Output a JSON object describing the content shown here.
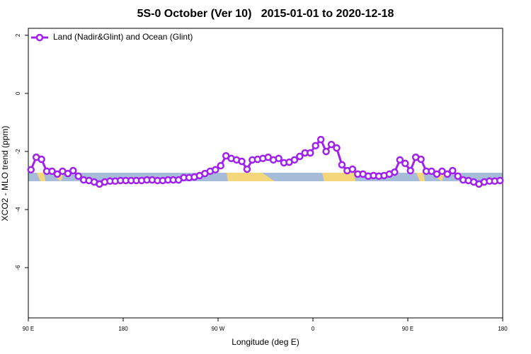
{
  "chart_data": {
    "type": "line",
    "title": "5S-0 October (Ver 10)   2015-01-01 to 2020-12-18",
    "x_label": "Longitude (deg E)",
    "y_label": "XCO2 - MLO trend (ppm)",
    "xlim": [
      90,
      540
    ],
    "xticks": [
      {
        "value": 90,
        "label": "90 E"
      },
      {
        "value": 180,
        "label": "180"
      },
      {
        "value": 270,
        "label": "90 W"
      },
      {
        "value": 360,
        "label": "0"
      },
      {
        "value": 450,
        "label": "90 E"
      },
      {
        "value": 540,
        "label": "180"
      }
    ],
    "ylim": [
      -7.73,
      2.24
    ],
    "yticks": [
      2,
      0,
      -2,
      -4,
      -6
    ],
    "legend": "upper left",
    "x": [
      92.5,
      97.5,
      102.5,
      107.5,
      112.5,
      117.5,
      122.5,
      127.5,
      132.5,
      137.5,
      142.5,
      147.5,
      152.5,
      157.5,
      162.5,
      167.5,
      172.5,
      177.5,
      182.5,
      187.5,
      192.5,
      197.5,
      202.5,
      207.5,
      212.5,
      217.5,
      222.5,
      227.5,
      232.5,
      237.5,
      242.5,
      247.5,
      252.5,
      257.5,
      262.5,
      267.5,
      272.5,
      277.5,
      282.5,
      287.5,
      292.5,
      297.5,
      302.5,
      307.5,
      312.5,
      317.5,
      322.5,
      327.5,
      332.5,
      337.5,
      342.5,
      347.5,
      352.5,
      357.5,
      362.5,
      367.5,
      372.5,
      377.5,
      382.5,
      387.5,
      392.5,
      397.5,
      402.5,
      407.5,
      412.5,
      417.5,
      422.5,
      427.5,
      432.5,
      437.5,
      442.5,
      447.5,
      452.5,
      457.5,
      462.5,
      467.5,
      472.5,
      477.5,
      482.5,
      487.5,
      492.5,
      497.5,
      502.5,
      507.5,
      512.5,
      517.5,
      522.5,
      527.5,
      532.5,
      537.5
    ],
    "series": [
      {
        "name": "Land (Nadir&Glint) and Ocean (Glint)",
        "color": "#a020f0",
        "values": [
          -2.63,
          -2.2,
          -2.27,
          -2.68,
          -2.68,
          -2.78,
          -2.68,
          -2.76,
          -2.66,
          -2.85,
          -2.98,
          -3.0,
          -3.05,
          -3.12,
          -3.05,
          -3.02,
          -3.02,
          -3.0,
          -3.0,
          -3.0,
          -3.0,
          -3.0,
          -2.98,
          -2.98,
          -3.0,
          -3.0,
          -2.98,
          -2.98,
          -2.98,
          -2.9,
          -2.9,
          -2.88,
          -2.83,
          -2.76,
          -2.68,
          -2.63,
          -2.49,
          -2.15,
          -2.24,
          -2.29,
          -2.34,
          -2.61,
          -2.29,
          -2.27,
          -2.24,
          -2.2,
          -2.29,
          -2.24,
          -2.39,
          -2.37,
          -2.29,
          -2.17,
          -2.05,
          -2.05,
          -1.8,
          -1.59,
          -2.0,
          -1.76,
          -1.88,
          -2.46,
          -2.66,
          -2.61,
          -2.78,
          -2.78,
          -2.85,
          -2.83,
          -2.85,
          -2.83,
          -2.78,
          -2.71,
          -2.29,
          -2.41,
          -2.66,
          -2.2,
          -2.27,
          -2.68,
          -2.68,
          -2.78,
          -2.68,
          -2.78,
          -2.66,
          -2.85,
          -2.98,
          -3.0,
          -3.05,
          -3.12,
          -3.05,
          -3.02,
          -3.02,
          -3.0
        ]
      }
    ]
  }
}
